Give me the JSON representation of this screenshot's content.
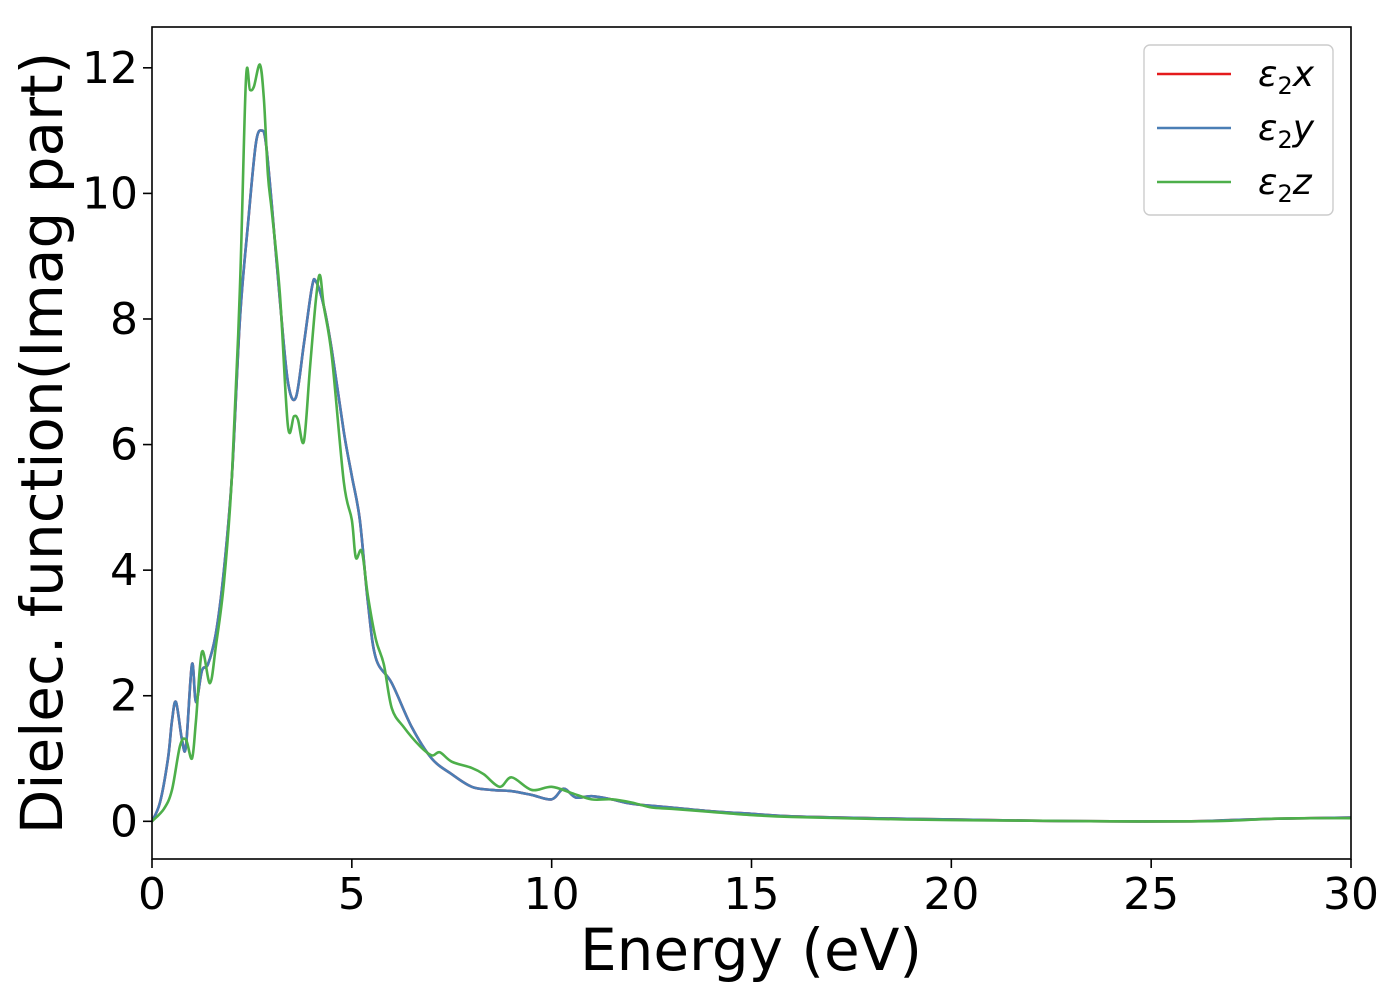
{
  "chart_data": {
    "type": "line",
    "title": "",
    "xlabel": "Energy (eV)",
    "ylabel": "Dielec. function(Imag part)",
    "xlim": [
      0,
      30
    ],
    "ylim": [
      -0.6,
      12.65
    ],
    "xticks": [
      0,
      5,
      10,
      15,
      20,
      25,
      30
    ],
    "xtick_labels": [
      "0",
      "5",
      "10",
      "15",
      "20",
      "25",
      "30"
    ],
    "yticks": [
      0,
      2,
      4,
      6,
      8,
      10,
      12
    ],
    "ytick_labels": [
      "0",
      "2",
      "4",
      "6",
      "8",
      "10",
      "12"
    ],
    "grid": false,
    "legend_position": "top-right",
    "series": [
      {
        "name": "ε2x",
        "legend_base": "ε",
        "legend_sub": "2",
        "legend_axis": "x",
        "color": "#e41a1c",
        "x": [
          0,
          0.2,
          0.4,
          0.5,
          0.6,
          0.75,
          0.85,
          1.0,
          1.1,
          1.25,
          1.4,
          1.6,
          1.8,
          2.0,
          2.2,
          2.4,
          2.6,
          2.75,
          2.85,
          3.0,
          3.2,
          3.4,
          3.6,
          3.8,
          4.0,
          4.1,
          4.3,
          4.5,
          4.8,
          5.0,
          5.2,
          5.4,
          5.6,
          6.0,
          6.5,
          7.0,
          7.5,
          8.0,
          8.5,
          9.0,
          9.5,
          10.0,
          10.3,
          10.6,
          11.0,
          11.5,
          12.0,
          13.0,
          14.0,
          15.0,
          16.0,
          18.0,
          20.0,
          22.0,
          24.0,
          26.0,
          27.0,
          28.0,
          29.0,
          30.0
        ],
        "values": [
          0,
          0.3,
          1.0,
          1.6,
          1.9,
          1.3,
          1.2,
          2.5,
          1.9,
          2.4,
          2.5,
          3.0,
          4.0,
          5.5,
          8.0,
          9.5,
          10.8,
          11.0,
          10.8,
          9.8,
          8.3,
          7.0,
          6.75,
          7.6,
          8.5,
          8.6,
          8.2,
          7.5,
          6.2,
          5.5,
          4.8,
          3.5,
          2.6,
          2.2,
          1.5,
          1.0,
          0.75,
          0.55,
          0.5,
          0.48,
          0.42,
          0.35,
          0.52,
          0.38,
          0.4,
          0.35,
          0.28,
          0.22,
          0.16,
          0.12,
          0.08,
          0.05,
          0.03,
          0.01,
          0.0,
          0.0,
          0.02,
          0.04,
          0.05,
          0.06
        ]
      },
      {
        "name": "ε2y",
        "legend_base": "ε",
        "legend_sub": "2",
        "legend_axis": "y",
        "color": "#4a7eb5",
        "x": [
          0,
          0.2,
          0.4,
          0.5,
          0.6,
          0.75,
          0.85,
          1.0,
          1.1,
          1.25,
          1.4,
          1.6,
          1.8,
          2.0,
          2.2,
          2.4,
          2.6,
          2.75,
          2.85,
          3.0,
          3.2,
          3.4,
          3.6,
          3.8,
          4.0,
          4.1,
          4.3,
          4.5,
          4.8,
          5.0,
          5.2,
          5.4,
          5.6,
          6.0,
          6.5,
          7.0,
          7.5,
          8.0,
          8.5,
          9.0,
          9.5,
          10.0,
          10.3,
          10.6,
          11.0,
          11.5,
          12.0,
          13.0,
          14.0,
          15.0,
          16.0,
          18.0,
          20.0,
          22.0,
          24.0,
          26.0,
          27.0,
          28.0,
          29.0,
          30.0
        ],
        "values": [
          0,
          0.3,
          1.0,
          1.6,
          1.9,
          1.3,
          1.2,
          2.5,
          1.9,
          2.4,
          2.5,
          3.0,
          4.0,
          5.5,
          8.0,
          9.5,
          10.8,
          11.0,
          10.8,
          9.8,
          8.3,
          7.0,
          6.75,
          7.6,
          8.5,
          8.6,
          8.2,
          7.5,
          6.2,
          5.5,
          4.8,
          3.5,
          2.6,
          2.2,
          1.5,
          1.0,
          0.75,
          0.55,
          0.5,
          0.48,
          0.42,
          0.35,
          0.52,
          0.38,
          0.4,
          0.35,
          0.28,
          0.22,
          0.16,
          0.12,
          0.08,
          0.05,
          0.03,
          0.01,
          0.0,
          0.0,
          0.02,
          0.04,
          0.05,
          0.06
        ]
      },
      {
        "name": "ε2z",
        "legend_base": "ε",
        "legend_sub": "2",
        "legend_axis": "z",
        "color": "#4daf4a",
        "x": [
          0,
          0.3,
          0.5,
          0.7,
          0.85,
          1.0,
          1.1,
          1.25,
          1.45,
          1.6,
          1.8,
          2.0,
          2.2,
          2.35,
          2.45,
          2.55,
          2.7,
          2.8,
          2.9,
          3.0,
          3.2,
          3.4,
          3.55,
          3.65,
          3.8,
          3.95,
          4.1,
          4.2,
          4.3,
          4.5,
          4.8,
          5.0,
          5.1,
          5.25,
          5.4,
          5.6,
          5.8,
          6.0,
          6.3,
          6.7,
          7.0,
          7.2,
          7.5,
          8.0,
          8.3,
          8.7,
          9.0,
          9.5,
          10.0,
          10.5,
          11.0,
          11.5,
          12.0,
          12.5,
          13.0,
          14.0,
          15.0,
          16.0,
          18.0,
          20.0,
          22.0,
          24.0,
          26.0,
          27.0,
          28.0,
          29.0,
          30.0
        ],
        "values": [
          0,
          0.2,
          0.5,
          1.2,
          1.3,
          1.0,
          1.6,
          2.7,
          2.2,
          2.8,
          3.8,
          5.5,
          8.5,
          11.8,
          11.65,
          11.7,
          12.05,
          11.5,
          10.3,
          9.7,
          8.4,
          6.3,
          6.45,
          6.4,
          6.05,
          7.2,
          8.3,
          8.7,
          8.2,
          7.4,
          5.4,
          4.8,
          4.2,
          4.3,
          3.6,
          2.9,
          2.5,
          1.8,
          1.5,
          1.2,
          1.05,
          1.1,
          0.95,
          0.85,
          0.75,
          0.55,
          0.7,
          0.5,
          0.55,
          0.45,
          0.35,
          0.35,
          0.3,
          0.22,
          0.2,
          0.15,
          0.1,
          0.07,
          0.04,
          0.02,
          0.01,
          0.0,
          0.0,
          0.01,
          0.04,
          0.05,
          0.05
        ]
      }
    ]
  }
}
